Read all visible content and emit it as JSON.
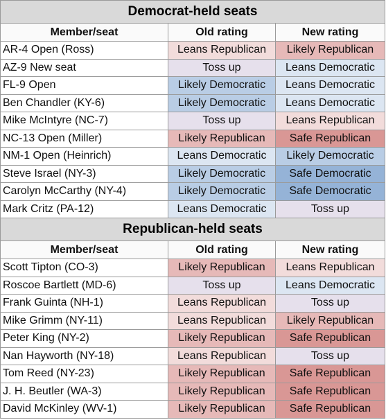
{
  "sections": [
    {
      "title": "Democrat-held seats",
      "columns": [
        "Member/seat",
        "Old rating",
        "New rating"
      ],
      "rows": [
        {
          "member": "AR-4 Open (Ross)",
          "old": {
            "text": "Leans Republican",
            "fill": "#f2dcdb"
          },
          "new": {
            "text": "Likely Republican",
            "fill": "#e6b9b8"
          }
        },
        {
          "member": "AZ-9 New seat",
          "old": {
            "text": "Toss up",
            "fill": "#e6e0ec"
          },
          "new": {
            "text": "Leans Democratic",
            "fill": "#dce6f2"
          }
        },
        {
          "member": "FL-9 Open",
          "old": {
            "text": "Likely Democratic",
            "fill": "#b9cde5"
          },
          "new": {
            "text": "Leans Democratic",
            "fill": "#dce6f2"
          }
        },
        {
          "member": "Ben Chandler (KY-6)",
          "old": {
            "text": "Likely Democratic",
            "fill": "#b9cde5"
          },
          "new": {
            "text": "Leans Democratic",
            "fill": "#dce6f2"
          }
        },
        {
          "member": "Mike McIntyre (NC-7)",
          "old": {
            "text": "Toss up",
            "fill": "#e6e0ec"
          },
          "new": {
            "text": "Leans Republican",
            "fill": "#f2dcdb"
          }
        },
        {
          "member": "NC-13 Open (Miller)",
          "old": {
            "text": "Likely Republican",
            "fill": "#e6b9b8"
          },
          "new": {
            "text": "Safe Republican",
            "fill": "#d99795"
          }
        },
        {
          "member": "NM-1 Open (Heinrich)",
          "old": {
            "text": "Leans Democratic",
            "fill": "#dce6f2"
          },
          "new": {
            "text": "Likely Democratic",
            "fill": "#b9cde5"
          }
        },
        {
          "member": "Steve Israel (NY-3)",
          "old": {
            "text": "Likely Democratic",
            "fill": "#b9cde5"
          },
          "new": {
            "text": "Safe Democratic",
            "fill": "#95b3d7"
          }
        },
        {
          "member": "Carolyn McCarthy (NY-4)",
          "old": {
            "text": "Likely Democratic",
            "fill": "#b9cde5"
          },
          "new": {
            "text": "Safe Democratic",
            "fill": "#95b3d7"
          }
        },
        {
          "member": "Mark Critz (PA-12)",
          "old": {
            "text": "Leans Democratic",
            "fill": "#dce6f2"
          },
          "new": {
            "text": "Toss up",
            "fill": "#e6e0ec"
          }
        }
      ]
    },
    {
      "title": "Republican-held seats",
      "columns": [
        "Member/seat",
        "Old rating",
        "New rating"
      ],
      "rows": [
        {
          "member": "Scott Tipton (CO-3)",
          "old": {
            "text": "Likely Republican",
            "fill": "#e6b9b8"
          },
          "new": {
            "text": "Leans Republican",
            "fill": "#f2dcdb"
          }
        },
        {
          "member": "Roscoe Bartlett (MD-6)",
          "old": {
            "text": "Toss up",
            "fill": "#e6e0ec"
          },
          "new": {
            "text": "Leans Democratic",
            "fill": "#dce6f2"
          }
        },
        {
          "member": "Frank Guinta (NH-1)",
          "old": {
            "text": "Leans Republican",
            "fill": "#f2dcdb"
          },
          "new": {
            "text": "Toss up",
            "fill": "#e6e0ec"
          }
        },
        {
          "member": "Mike Grimm (NY-11)",
          "old": {
            "text": "Leans Republican",
            "fill": "#f2dcdb"
          },
          "new": {
            "text": "Likely Republican",
            "fill": "#e6b9b8"
          }
        },
        {
          "member": "Peter King (NY-2)",
          "old": {
            "text": "Likely Republican",
            "fill": "#e6b9b8"
          },
          "new": {
            "text": "Safe Republican",
            "fill": "#d99795"
          }
        },
        {
          "member": "Nan Hayworth (NY-18)",
          "old": {
            "text": "Leans Republican",
            "fill": "#f2dcdb"
          },
          "new": {
            "text": "Toss up",
            "fill": "#e6e0ec"
          }
        },
        {
          "member": "Tom Reed (NY-23)",
          "old": {
            "text": "Likely Republican",
            "fill": "#e6b9b8"
          },
          "new": {
            "text": "Safe Republican",
            "fill": "#d99795"
          }
        },
        {
          "member": "J. H. Beutler (WA-3)",
          "old": {
            "text": "Likely Republican",
            "fill": "#e6b9b8"
          },
          "new": {
            "text": "Safe Republican",
            "fill": "#d99795"
          }
        },
        {
          "member": "David McKinley (WV-1)",
          "old": {
            "text": "Likely Republican",
            "fill": "#e6b9b8"
          },
          "new": {
            "text": "Safe Republican",
            "fill": "#d99795"
          }
        }
      ]
    }
  ]
}
